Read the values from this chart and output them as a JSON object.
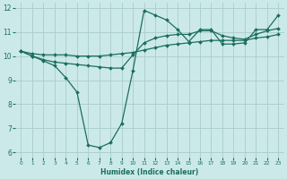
{
  "xlabel": "Humidex (Indice chaleur)",
  "ylabel": "",
  "xlim": [
    -0.5,
    23.5
  ],
  "ylim": [
    5.8,
    12.2
  ],
  "yticks": [
    6,
    7,
    8,
    9,
    10,
    11,
    12
  ],
  "xticks": [
    0,
    1,
    2,
    3,
    4,
    5,
    6,
    7,
    8,
    9,
    10,
    11,
    12,
    13,
    14,
    15,
    16,
    17,
    18,
    19,
    20,
    21,
    22,
    23
  ],
  "background_color": "#cce9e9",
  "grid_color": "#aacccc",
  "line_color": "#1a6e60",
  "lines": [
    {
      "x": [
        0,
        1,
        2,
        3,
        4,
        5,
        6,
        7,
        8,
        9,
        10,
        11,
        12,
        13,
        14,
        15,
        16,
        17,
        18,
        19,
        20,
        21,
        22,
        23
      ],
      "y": [
        10.2,
        10.0,
        9.8,
        9.6,
        9.1,
        8.5,
        6.3,
        6.2,
        6.4,
        7.2,
        9.4,
        11.9,
        11.7,
        11.5,
        11.1,
        10.6,
        11.1,
        11.1,
        10.5,
        10.5,
        10.55,
        11.1,
        11.1,
        11.7
      ],
      "marker": "D",
      "markersize": 2.0,
      "linewidth": 0.9
    },
    {
      "x": [
        0,
        1,
        2,
        3,
        4,
        5,
        6,
        7,
        8,
        9,
        10,
        11,
        12,
        13,
        14,
        15,
        16,
        17,
        18,
        19,
        20,
        21,
        22,
        23
      ],
      "y": [
        10.2,
        10.0,
        9.85,
        9.75,
        9.7,
        9.65,
        9.6,
        9.55,
        9.5,
        9.5,
        10.05,
        10.55,
        10.75,
        10.85,
        10.9,
        10.9,
        11.05,
        11.05,
        10.85,
        10.75,
        10.7,
        10.9,
        11.05,
        11.15
      ],
      "marker": "D",
      "markersize": 2.0,
      "linewidth": 0.9
    },
    {
      "x": [
        0,
        1,
        2,
        3,
        4,
        5,
        6,
        7,
        8,
        9,
        10,
        11,
        12,
        13,
        14,
        15,
        16,
        17,
        18,
        19,
        20,
        21,
        22,
        23
      ],
      "y": [
        10.2,
        10.1,
        10.05,
        10.05,
        10.05,
        10.0,
        10.0,
        10.0,
        10.05,
        10.1,
        10.15,
        10.25,
        10.35,
        10.45,
        10.5,
        10.55,
        10.6,
        10.65,
        10.65,
        10.65,
        10.65,
        10.75,
        10.8,
        10.9
      ],
      "marker": "D",
      "markersize": 2.0,
      "linewidth": 0.9
    }
  ]
}
